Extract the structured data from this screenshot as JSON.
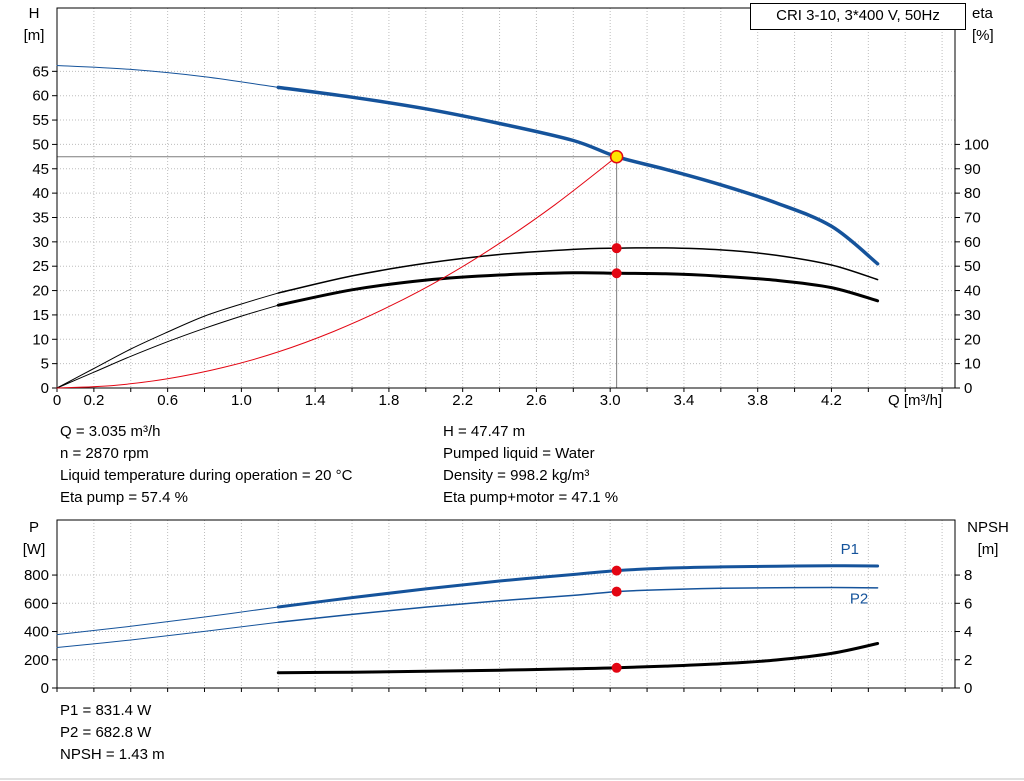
{
  "axis_labels": {
    "h": "H",
    "h_unit": "[m]",
    "eta": "eta",
    "eta_unit": "[%]",
    "q": "Q [m³/h]",
    "p": "P",
    "p_unit": "[W]",
    "npsh": "NPSH",
    "npsh_unit": "[m]"
  },
  "operating_info": {
    "col1": [
      "Q = 3.035 m³/h",
      "n = 2870 rpm",
      "Liquid temperature during operation = 20 °C",
      "Eta pump = 57.4 %"
    ],
    "col2": [
      "H = 47.47 m",
      "Pumped liquid = Water",
      "Density = 998.2 kg/m³",
      "Eta pump+motor = 47.1 %"
    ]
  },
  "power_info": [
    "P1 = 831.4 W",
    "P2 = 682.8 W",
    "NPSH = 1.43 m"
  ],
  "colors": {
    "blue": "#15539b",
    "black": "#000000",
    "red": "#e30613",
    "yellow": "#ffe500",
    "gray": "#7d7d7d"
  },
  "chart_data": [
    {
      "type": "line",
      "title": "CRI 3-10, 3*400 V, 50Hz",
      "xlabel": "Q [m³/h]",
      "ylabel_left": "H [m]",
      "ylabel_right": "eta [%]",
      "grid": true,
      "xlim": [
        0,
        4.87
      ],
      "ylim_left": [
        0,
        78
      ],
      "ylim_right": [
        0,
        156
      ],
      "x_grid_step": 0.2,
      "x_tick_labels": [
        [
          0,
          "0"
        ],
        [
          0.2,
          "0.2"
        ],
        [
          0.6,
          "0.6"
        ],
        [
          1.0,
          "1.0"
        ],
        [
          1.4,
          "1.4"
        ],
        [
          1.8,
          "1.8"
        ],
        [
          2.2,
          "2.2"
        ],
        [
          2.6,
          "2.6"
        ],
        [
          3.0,
          "3.0"
        ],
        [
          3.4,
          "3.4"
        ],
        [
          3.8,
          "3.8"
        ],
        [
          4.2,
          "4.2"
        ]
      ],
      "y_ticks_left": [
        0,
        5,
        10,
        15,
        20,
        25,
        30,
        35,
        40,
        45,
        50,
        55,
        60,
        65
      ],
      "y_ticks_right": [
        0,
        10,
        20,
        30,
        40,
        50,
        60,
        70,
        80,
        90,
        100
      ],
      "crosshair": {
        "x": 3.035,
        "y": 47.47
      },
      "series": [
        {
          "name": "h-curve-thin",
          "color": "blue",
          "width": 1,
          "axis": "left",
          "points": [
            [
              0,
              66.2
            ],
            [
              0.4,
              65.4
            ],
            [
              0.8,
              63.9
            ],
            [
              1.2,
              61.7
            ]
          ]
        },
        {
          "name": "h-curve",
          "color": "blue",
          "width": 3.5,
          "axis": "left",
          "points": [
            [
              1.2,
              61.7
            ],
            [
              1.6,
              59.7
            ],
            [
              2.0,
              57.3
            ],
            [
              2.4,
              54.3
            ],
            [
              2.8,
              50.8
            ],
            [
              3.035,
              47.47
            ],
            [
              3.3,
              44.9
            ],
            [
              3.6,
              41.7
            ],
            [
              3.9,
              38.0
            ],
            [
              4.2,
              33.2
            ],
            [
              4.45,
              25.5
            ]
          ]
        },
        {
          "name": "eta-pump-curve-thin",
          "color": "black",
          "width": 1,
          "axis": "right",
          "points": [
            [
              0,
              0
            ],
            [
              0.2,
              8
            ],
            [
              0.4,
              16
            ],
            [
              0.6,
              23
            ],
            [
              0.8,
              29.5
            ],
            [
              1.0,
              34.5
            ],
            [
              1.2,
              39
            ]
          ]
        },
        {
          "name": "eta-pump-curve",
          "color": "black",
          "width": 1.5,
          "axis": "right",
          "points": [
            [
              1.2,
              39
            ],
            [
              1.6,
              46
            ],
            [
              2.0,
              51.2
            ],
            [
              2.4,
              54.8
            ],
            [
              2.8,
              56.9
            ],
            [
              3.035,
              57.4
            ],
            [
              3.3,
              57.5
            ],
            [
              3.6,
              56.7
            ],
            [
              3.9,
              54.5
            ],
            [
              4.2,
              50.5
            ],
            [
              4.45,
              44.5
            ]
          ]
        },
        {
          "name": "eta-pump-motor-curve-thin",
          "color": "black",
          "width": 1,
          "axis": "right",
          "points": [
            [
              0,
              0
            ],
            [
              0.2,
              6.5
            ],
            [
              0.4,
              13
            ],
            [
              0.6,
              19
            ],
            [
              0.8,
              24.5
            ],
            [
              1.0,
              29.5
            ],
            [
              1.2,
              34
            ]
          ]
        },
        {
          "name": "eta-pump-motor-curve",
          "color": "black",
          "width": 3,
          "axis": "right",
          "points": [
            [
              1.2,
              34
            ],
            [
              1.6,
              40.3
            ],
            [
              2.0,
              44.3
            ],
            [
              2.4,
              46.4
            ],
            [
              2.8,
              47.3
            ],
            [
              3.035,
              47.1
            ],
            [
              3.3,
              46.9
            ],
            [
              3.6,
              45.9
            ],
            [
              3.9,
              44.2
            ],
            [
              4.2,
              41.2
            ],
            [
              4.45,
              35.8
            ]
          ]
        },
        {
          "name": "system-curve",
          "color": "red",
          "width": 1,
          "axis": "left",
          "points": [
            [
              0,
              0
            ],
            [
              0.3,
              0.5
            ],
            [
              0.6,
              1.9
            ],
            [
              0.9,
              4.2
            ],
            [
              1.2,
              7.4
            ],
            [
              1.5,
              11.6
            ],
            [
              1.8,
              16.7
            ],
            [
              2.1,
              22.7
            ],
            [
              2.4,
              29.7
            ],
            [
              2.7,
              37.6
            ],
            [
              3.035,
              47.47
            ]
          ]
        }
      ],
      "markers": [
        {
          "x": 3.035,
          "y": 47.47,
          "axis": "left",
          "style": "duty"
        },
        {
          "x": 3.035,
          "y": 57.4,
          "axis": "right",
          "style": "dot"
        },
        {
          "x": 3.035,
          "y": 47.1,
          "axis": "right",
          "style": "dot"
        }
      ]
    },
    {
      "type": "line",
      "title": "",
      "xlabel": "",
      "ylabel_left": "P [W]",
      "ylabel_right": "NPSH [m]",
      "grid": true,
      "xlim": [
        0,
        4.87
      ],
      "ylim_left": [
        0,
        1190
      ],
      "ylim_right": [
        0,
        11.9
      ],
      "x_grid_step": 0.2,
      "x_tick_labels": [],
      "y_ticks_left": [
        0,
        200,
        400,
        600,
        800
      ],
      "y_ticks_right": [
        0,
        2,
        4,
        6,
        8
      ],
      "series": [
        {
          "name": "p1-curve-thin",
          "color": "blue",
          "width": 1,
          "axis": "left",
          "points": [
            [
              0,
              378
            ],
            [
              0.4,
              437
            ],
            [
              0.8,
              503
            ],
            [
              1.2,
              574
            ]
          ]
        },
        {
          "name": "p1-curve",
          "color": "blue",
          "width": 3,
          "axis": "left",
          "points": [
            [
              1.2,
              574
            ],
            [
              1.6,
              640
            ],
            [
              2.0,
              702
            ],
            [
              2.4,
              758
            ],
            [
              2.8,
              804
            ],
            [
              3.035,
              831.4
            ],
            [
              3.3,
              849
            ],
            [
              3.6,
              858
            ],
            [
              3.9,
              863
            ],
            [
              4.2,
              866
            ],
            [
              4.45,
              864
            ]
          ]
        },
        {
          "name": "p2-curve-thin",
          "color": "blue",
          "width": 1,
          "axis": "left",
          "points": [
            [
              0,
              287
            ],
            [
              0.4,
              340
            ],
            [
              0.8,
              401
            ],
            [
              1.2,
              466
            ]
          ]
        },
        {
          "name": "p2-curve",
          "color": "blue",
          "width": 1.5,
          "axis": "left",
          "points": [
            [
              1.2,
              466
            ],
            [
              1.6,
              521
            ],
            [
              2.0,
              573
            ],
            [
              2.4,
              618
            ],
            [
              2.8,
              656
            ],
            [
              3.035,
              682.8
            ],
            [
              3.3,
              697
            ],
            [
              3.6,
              706
            ],
            [
              3.9,
              710
            ],
            [
              4.2,
              712
            ],
            [
              4.45,
              709
            ]
          ]
        },
        {
          "name": "npsh-curve",
          "color": "black",
          "width": 3,
          "axis": "right",
          "points": [
            [
              1.2,
              1.08
            ],
            [
              1.6,
              1.12
            ],
            [
              2.0,
              1.18
            ],
            [
              2.4,
              1.26
            ],
            [
              2.8,
              1.36
            ],
            [
              3.035,
              1.43
            ],
            [
              3.3,
              1.55
            ],
            [
              3.6,
              1.72
            ],
            [
              3.9,
              1.98
            ],
            [
              4.2,
              2.45
            ],
            [
              4.45,
              3.15
            ]
          ]
        }
      ],
      "markers": [
        {
          "x": 3.035,
          "y": 831.4,
          "axis": "left",
          "style": "dot"
        },
        {
          "x": 3.035,
          "y": 682.8,
          "axis": "left",
          "style": "dot"
        },
        {
          "x": 3.035,
          "y": 1.43,
          "axis": "right",
          "style": "dot"
        }
      ],
      "annotations": [
        {
          "text": "P1",
          "x": 4.25,
          "y": 950,
          "axis": "left",
          "color": "blue"
        },
        {
          "text": "P2",
          "x": 4.3,
          "y": 600,
          "axis": "left",
          "color": "blue"
        }
      ]
    }
  ]
}
